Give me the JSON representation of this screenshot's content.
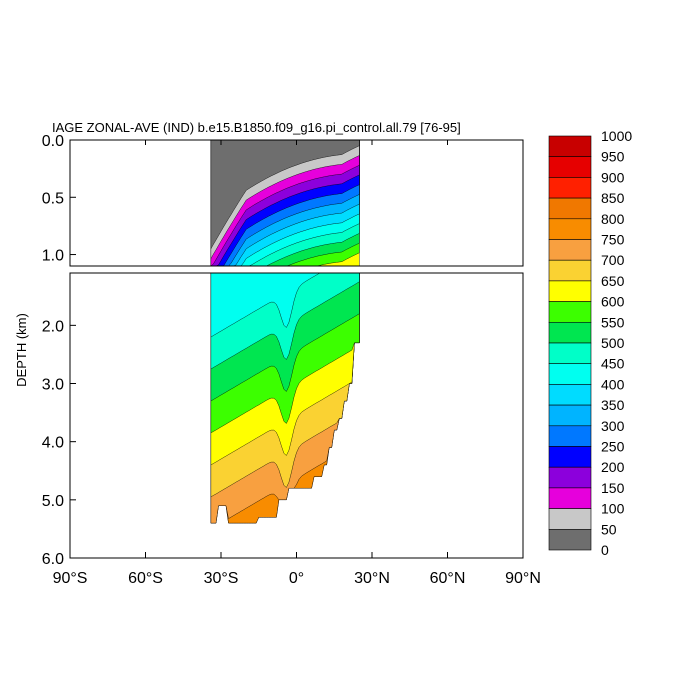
{
  "chart_data": {
    "type": "contour",
    "title": "IAGE ZONAL-AVE (IND) b.e15.B1850.f09_g16.pi_control.all.79 [76-95]",
    "ylabel": "DEPTH (km)",
    "xlabel": "",
    "x_ticks": [
      {
        "value": -90,
        "label": "90°S"
      },
      {
        "value": -60,
        "label": "60°S"
      },
      {
        "value": -30,
        "label": "30°S"
      },
      {
        "value": 0,
        "label": "0°"
      },
      {
        "value": 30,
        "label": "30°N"
      },
      {
        "value": 60,
        "label": "60°N"
      },
      {
        "value": 90,
        "label": "90°N"
      }
    ],
    "upper_panel": {
      "ylim": [
        0.0,
        1.1
      ],
      "y_ticks": [
        {
          "value": 0.0,
          "label": "0.0"
        },
        {
          "value": 0.5,
          "label": "0.5"
        },
        {
          "value": 1.0,
          "label": "1.0"
        }
      ]
    },
    "lower_panel": {
      "ylim": [
        1.1,
        6.0
      ],
      "y_ticks": [
        {
          "value": 2.0,
          "label": "2.0"
        },
        {
          "value": 3.0,
          "label": "3.0"
        },
        {
          "value": 4.0,
          "label": "4.0"
        },
        {
          "value": 5.0,
          "label": "5.0"
        },
        {
          "value": 6.0,
          "label": "6.0"
        }
      ]
    },
    "xlim": [
      -90,
      90
    ],
    "data_extent": {
      "lat_min": -34,
      "lat_max": 25
    },
    "colorbar": {
      "levels": [
        "1000",
        "950",
        "900",
        "850",
        "800",
        "750",
        "700",
        "650",
        "600",
        "550",
        "500",
        "450",
        "400",
        "350",
        "300",
        "250",
        "200",
        "150",
        "100",
        "50",
        "0"
      ],
      "colors": [
        "#c80000",
        "#e60000",
        "#ff2000",
        "#f07800",
        "#f88c00",
        "#f8a040",
        "#fad232",
        "#ffff00",
        "#3cff00",
        "#00e650",
        "#00ffc8",
        "#00fff0",
        "#00dcff",
        "#00b4ff",
        "#0078ff",
        "#0000ff",
        "#8c00dc",
        "#e600dc",
        "#c8c8c8",
        "#6e6e6e"
      ]
    },
    "grid": false,
    "legend": "right"
  }
}
